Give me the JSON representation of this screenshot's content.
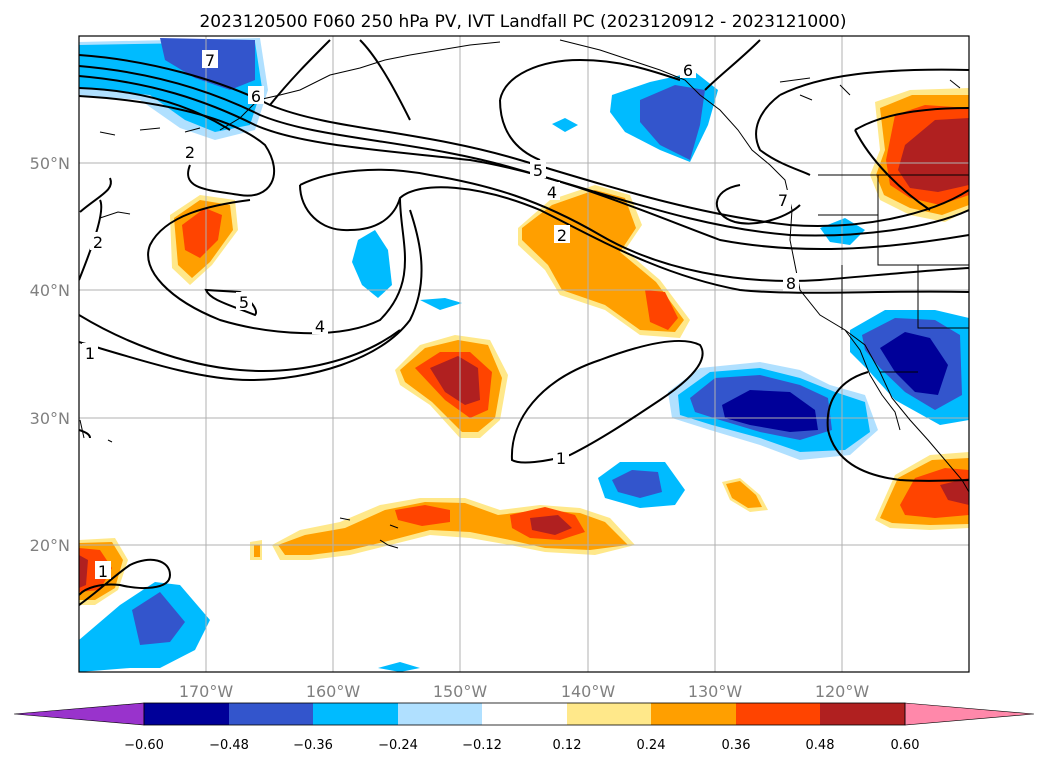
{
  "title": "2023120500 F060 250 hPa PV, IVT Landfall PC (2023120912 - 2023121000)",
  "map": {
    "lon_range": [
      -180,
      -110
    ],
    "lat_range": [
      10,
      60
    ],
    "lon_ticks": [
      "170°W",
      "160°W",
      "150°W",
      "140°W",
      "130°W",
      "120°W"
    ],
    "lat_ticks": [
      "50°N",
      "40°N",
      "30°N",
      "20°N"
    ],
    "grid": true,
    "contour_labels": [
      "7",
      "6",
      "6",
      "2",
      "2",
      "5",
      "4",
      "2",
      "5",
      "4",
      "7",
      "8",
      "1",
      "1",
      "1"
    ]
  },
  "colorbar": {
    "ticks": [
      "−0.60",
      "−0.48",
      "−0.36",
      "−0.24",
      "−0.12",
      "0.12",
      "0.24",
      "0.36",
      "0.48",
      "0.60"
    ],
    "colors": [
      "#9933cc",
      "#000099",
      "#3355cc",
      "#00bbff",
      "#b0e0ff",
      "#ffffff",
      "#ffe88a",
      "#ff9f00",
      "#ff4400",
      "#b02020",
      "#ff88aa"
    ]
  }
}
